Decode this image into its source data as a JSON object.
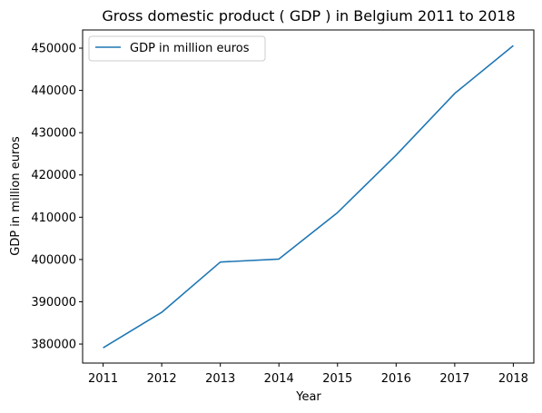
{
  "chart_data": {
    "type": "line",
    "title": "Gross domestic product ( GDP ) in Belgium 2011 to 2018",
    "xlabel": "Year",
    "ylabel": "GDP in million euros",
    "x": [
      2011,
      2012,
      2013,
      2014,
      2015,
      2016,
      2017,
      2018
    ],
    "x_tick_labels": [
      "2011",
      "2012",
      "2013",
      "2014",
      "2015",
      "2016",
      "2017",
      "2018"
    ],
    "y_ticks": [
      380000,
      390000,
      400000,
      410000,
      420000,
      430000,
      440000,
      450000
    ],
    "y_tick_labels": [
      "380000",
      "390000",
      "400000",
      "410000",
      "420000",
      "430000",
      "440000",
      "450000"
    ],
    "xlim": [
      2010.65,
      2018.35
    ],
    "ylim": [
      375500,
      454300
    ],
    "grid": false,
    "legend_position": "top-left",
    "series": [
      {
        "name": "GDP in million euros",
        "color": "#1f77b4",
        "values": [
          379100,
          387500,
          399400,
          400100,
          411100,
          424700,
          439300,
          450600
        ]
      }
    ]
  }
}
